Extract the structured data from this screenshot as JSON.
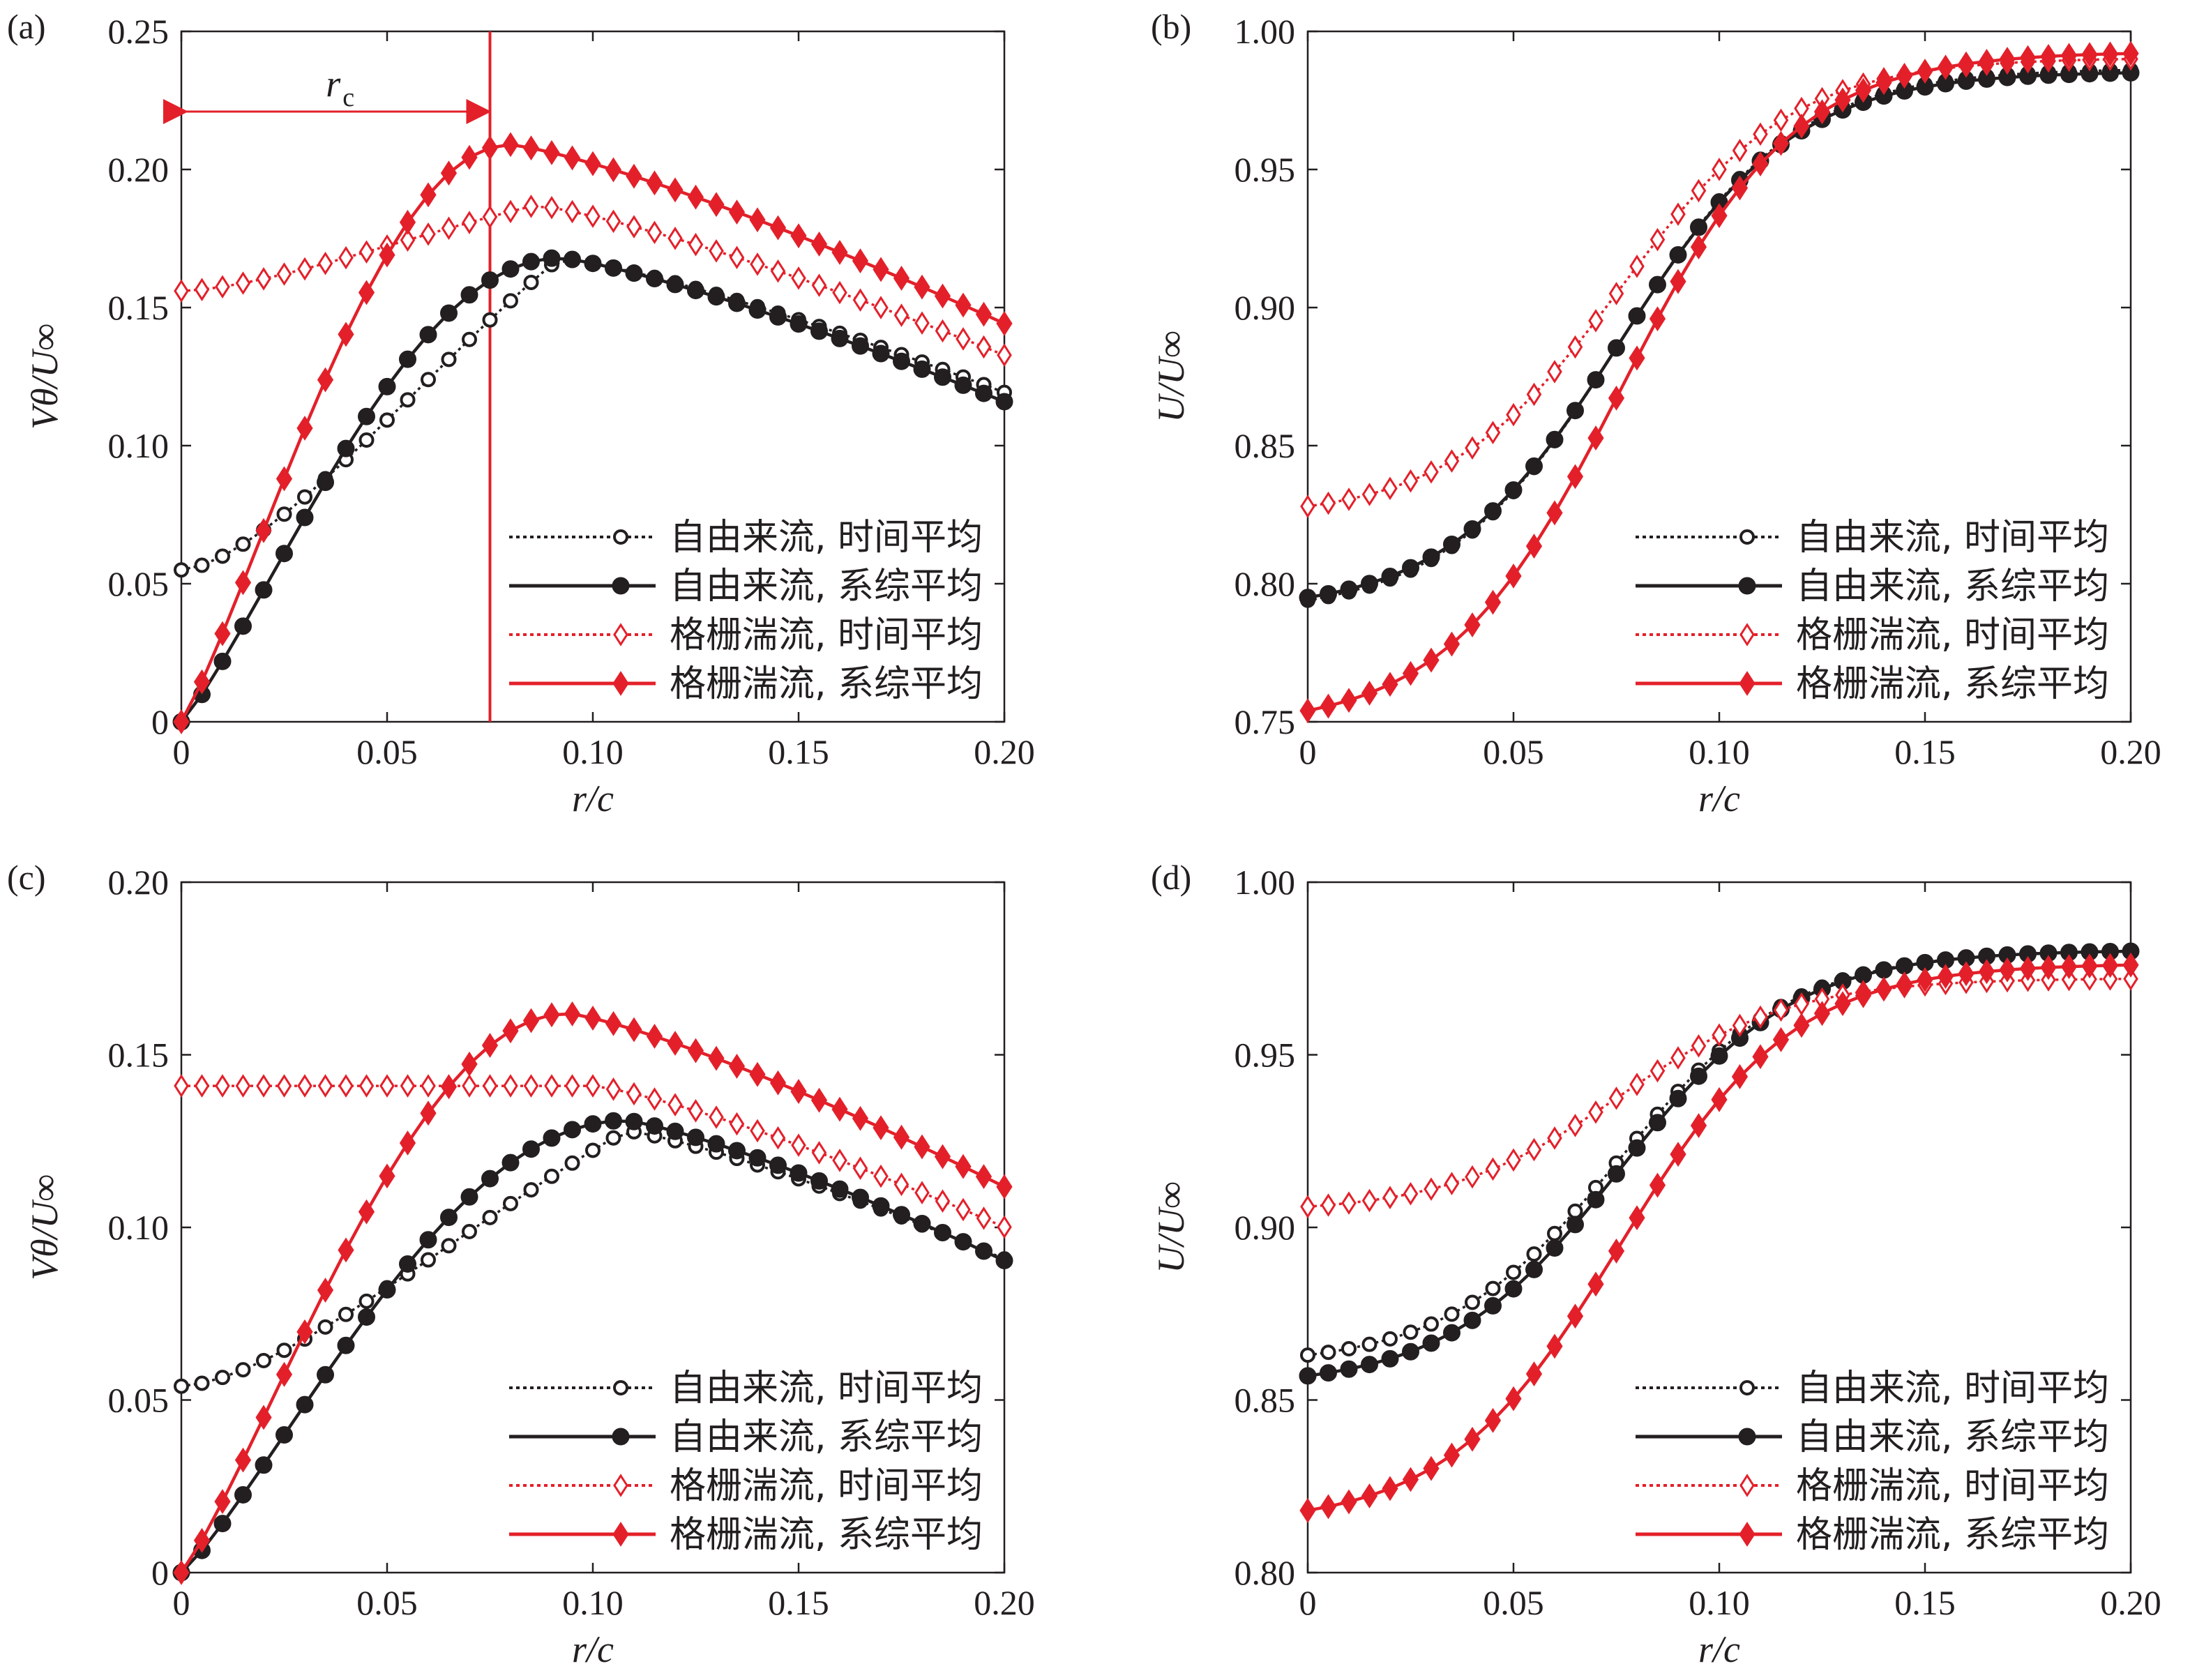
{
  "colors": {
    "black": "#231f20",
    "red": "#e3202a"
  },
  "legend_labels": [
    "自由来流, 时间平均",
    "自由来流, 系综平均",
    "格栅湍流, 时间平均",
    "格栅湍流, 系综平均"
  ],
  "annotation": {
    "rc_label": "r",
    "rc_sub": "c",
    "rc_value": 0.075
  },
  "chart_data": [
    {
      "panel": "(a)",
      "type": "line",
      "xlabel": "r/c",
      "ylabel": "Vθ/U∞",
      "xlim": [
        0,
        0.2
      ],
      "ylim": [
        0,
        0.25
      ],
      "xticks": [
        0,
        0.05,
        0.1,
        0.15,
        0.2
      ],
      "xtick_labels": [
        "0",
        "0.05",
        "0.10",
        "0.15",
        "0.20"
      ],
      "yticks": [
        0,
        0.05,
        0.1,
        0.15,
        0.2,
        0.25
      ],
      "ytick_labels": [
        "0",
        "0.05",
        "0.10",
        "0.15",
        "0.20",
        "0.25"
      ],
      "legend_position": "bottom-right",
      "vline": 0.075,
      "series": [
        {
          "name": "自由来流, 时间平均",
          "kind": "Vtheta",
          "params": [
            0.055,
            0.168,
            0.092,
            0.024
          ],
          "color": "#231f20",
          "line": "dotted",
          "marker": "circle-open"
        },
        {
          "name": "自由来流, 系综平均",
          "kind": "Vtheta",
          "params": [
            0.0,
            0.168,
            0.092,
            0.017
          ],
          "color": "#231f20",
          "line": "solid",
          "marker": "circle-filled"
        },
        {
          "name": "格栅湍流, 时间平均",
          "kind": "Vtheta",
          "params": [
            0.156,
            0.187,
            0.086,
            0.02
          ],
          "color": "#e3202a",
          "line": "dotted",
          "marker": "diamond-open"
        },
        {
          "name": "格栅湍流, 系综平均",
          "kind": "Vtheta",
          "params": [
            0.0,
            0.209,
            0.08,
            0.011
          ],
          "color": "#e3202a",
          "line": "solid",
          "marker": "diamond-filled"
        }
      ]
    },
    {
      "panel": "(b)",
      "type": "line",
      "xlabel": "r/c",
      "ylabel": "U/U∞",
      "xlim": [
        0,
        0.2
      ],
      "ylim": [
        0.75,
        1.0
      ],
      "xticks": [
        0,
        0.05,
        0.1,
        0.15,
        0.2
      ],
      "xtick_labels": [
        "0",
        "0.05",
        "0.10",
        "0.15",
        "0.20"
      ],
      "yticks": [
        0.75,
        0.8,
        0.85,
        0.9,
        0.95,
        1.0
      ],
      "ytick_labels": [
        "0.75",
        "0.80",
        "0.85",
        "0.90",
        "0.95",
        "1.00"
      ],
      "legend_position": "bottom-right",
      "series": [
        {
          "name": "自由来流, 时间平均",
          "kind": "U",
          "params": [
            0.794,
            0.986
          ],
          "color": "#231f20",
          "line": "dotted",
          "marker": "circle-open"
        },
        {
          "name": "自由来流, 系综平均",
          "kind": "U",
          "params": [
            0.795,
            0.985
          ],
          "color": "#231f20",
          "line": "solid",
          "marker": "circle-filled"
        },
        {
          "name": "格栅湍流, 时间平均",
          "kind": "U",
          "params": [
            0.828,
            0.99
          ],
          "color": "#e3202a",
          "line": "dotted",
          "marker": "diamond-open"
        },
        {
          "name": "格栅湍流, 系综平均",
          "kind": "U",
          "params": [
            0.754,
            0.992
          ],
          "color": "#e3202a",
          "line": "solid",
          "marker": "diamond-filled"
        }
      ]
    },
    {
      "panel": "(c)",
      "type": "line",
      "xlabel": "r/c",
      "ylabel": "Vθ/U∞",
      "xlim": [
        0,
        0.2
      ],
      "ylim": [
        0,
        0.2
      ],
      "xticks": [
        0,
        0.05,
        0.1,
        0.15,
        0.2
      ],
      "xtick_labels": [
        "0",
        "0.05",
        "0.10",
        "0.15",
        "0.20"
      ],
      "yticks": [
        0,
        0.05,
        0.1,
        0.15,
        0.2
      ],
      "ytick_labels": [
        "0",
        "0.05",
        "0.10",
        "0.15",
        "0.20"
      ],
      "legend_position": "bottom-right",
      "series": [
        {
          "name": "自由来流, 时间平均",
          "kind": "Vtheta",
          "params": [
            0.054,
            0.128,
            0.108,
            0.028
          ],
          "color": "#231f20",
          "line": "dotted",
          "marker": "circle-open"
        },
        {
          "name": "自由来流, 系综平均",
          "kind": "Vtheta",
          "params": [
            0.0,
            0.131,
            0.108,
            0.022
          ],
          "color": "#231f20",
          "line": "solid",
          "marker": "circle-filled"
        },
        {
          "name": "格栅湍流, 时间平均",
          "kind": "Vtheta",
          "params": [
            0.141,
            0.141,
            0.1,
            0.03
          ],
          "color": "#e3202a",
          "line": "dotted",
          "marker": "diamond-open"
        },
        {
          "name": "格栅湍流, 系综平均",
          "kind": "Vtheta",
          "params": [
            0.0,
            0.162,
            0.094,
            0.014
          ],
          "color": "#e3202a",
          "line": "solid",
          "marker": "diamond-filled"
        }
      ]
    },
    {
      "panel": "(d)",
      "type": "line",
      "xlabel": "r/c",
      "ylabel": "U/U∞",
      "xlim": [
        0,
        0.2
      ],
      "ylim": [
        0.8,
        1.0
      ],
      "xticks": [
        0,
        0.05,
        0.1,
        0.15,
        0.2
      ],
      "xtick_labels": [
        "0",
        "0.05",
        "0.10",
        "0.15",
        "0.20"
      ],
      "yticks": [
        0.8,
        0.85,
        0.9,
        0.95,
        1.0
      ],
      "ytick_labels": [
        "0.80",
        "0.85",
        "0.90",
        "0.95",
        "1.00"
      ],
      "legend_position": "bottom-right",
      "series": [
        {
          "name": "自由来流, 时间平均",
          "kind": "U",
          "params": [
            0.863,
            0.98
          ],
          "color": "#231f20",
          "line": "dotted",
          "marker": "circle-open"
        },
        {
          "name": "自由来流, 系综平均",
          "kind": "U",
          "params": [
            0.857,
            0.98
          ],
          "color": "#231f20",
          "line": "solid",
          "marker": "circle-filled"
        },
        {
          "name": "格栅湍流, 时间平均",
          "kind": "U",
          "params": [
            0.906,
            0.972
          ],
          "color": "#e3202a",
          "line": "dotted",
          "marker": "diamond-open"
        },
        {
          "name": "格栅湍流, 系综平均",
          "kind": "U",
          "params": [
            0.818,
            0.976
          ],
          "color": "#e3202a",
          "line": "solid",
          "marker": "diamond-filled"
        }
      ]
    }
  ]
}
